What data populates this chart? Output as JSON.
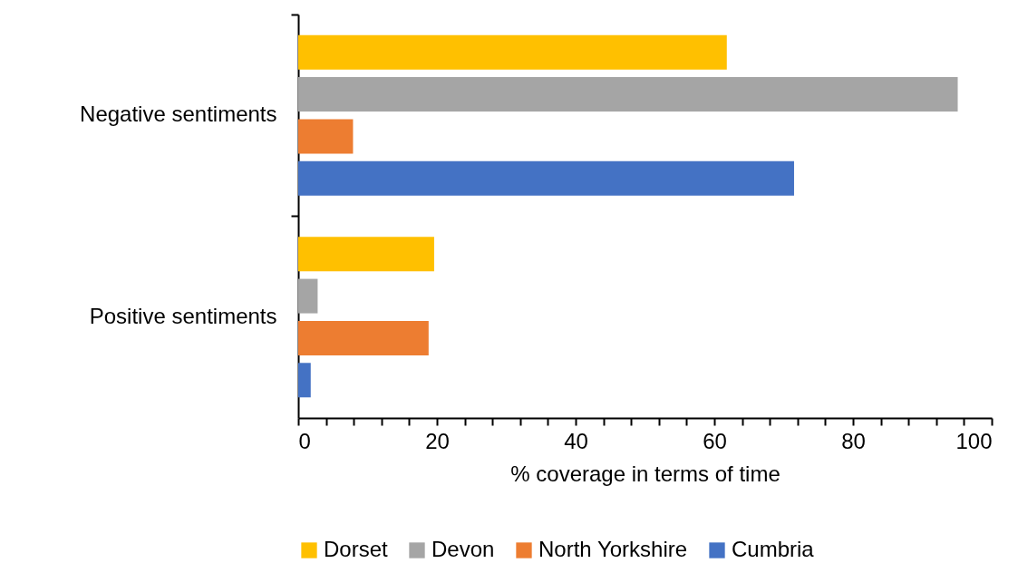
{
  "chart_data": {
    "type": "bar",
    "orientation": "horizontal",
    "xlabel": "% coverage in terms of time",
    "categories": [
      "Negative sentiments",
      "Positive sentiments"
    ],
    "series": [
      {
        "name": "Dorset",
        "color": "#ffc000",
        "values": [
          61.8,
          19.6
        ]
      },
      {
        "name": "Devon",
        "color": "#a5a5a5",
        "values": [
          95.1,
          2.8
        ]
      },
      {
        "name": "North Yorkshire",
        "color": "#ed7d31",
        "values": [
          7.9,
          18.8
        ]
      },
      {
        "name": "Cumbria",
        "color": "#4472c4",
        "values": [
          71.5,
          1.8
        ]
      }
    ],
    "xlim": [
      0,
      100
    ],
    "xticks": [
      0,
      {
        "value": 4,
        "label": null
      },
      {
        "value": 8,
        "label": null
      },
      {
        "value": 12,
        "label": null
      },
      {
        "value": 16,
        "label": null
      },
      20,
      {
        "value": 24,
        "label": null
      },
      {
        "value": 28,
        "label": null
      },
      {
        "value": 32,
        "label": null
      },
      {
        "value": 36,
        "label": null
      },
      40,
      {
        "value": 44,
        "label": null
      },
      {
        "value": 48,
        "label": null
      },
      {
        "value": 52,
        "label": null
      },
      {
        "value": 56,
        "label": null
      },
      60,
      {
        "value": 64,
        "label": null
      },
      {
        "value": 68,
        "label": null
      },
      {
        "value": 72,
        "label": null
      },
      {
        "value": 76,
        "label": null
      },
      80,
      {
        "value": 84,
        "label": null
      },
      {
        "value": 88,
        "label": null
      },
      {
        "value": 92,
        "label": null
      },
      {
        "value": 96,
        "label": null
      },
      100
    ],
    "grid": false,
    "legend": "bottom"
  }
}
